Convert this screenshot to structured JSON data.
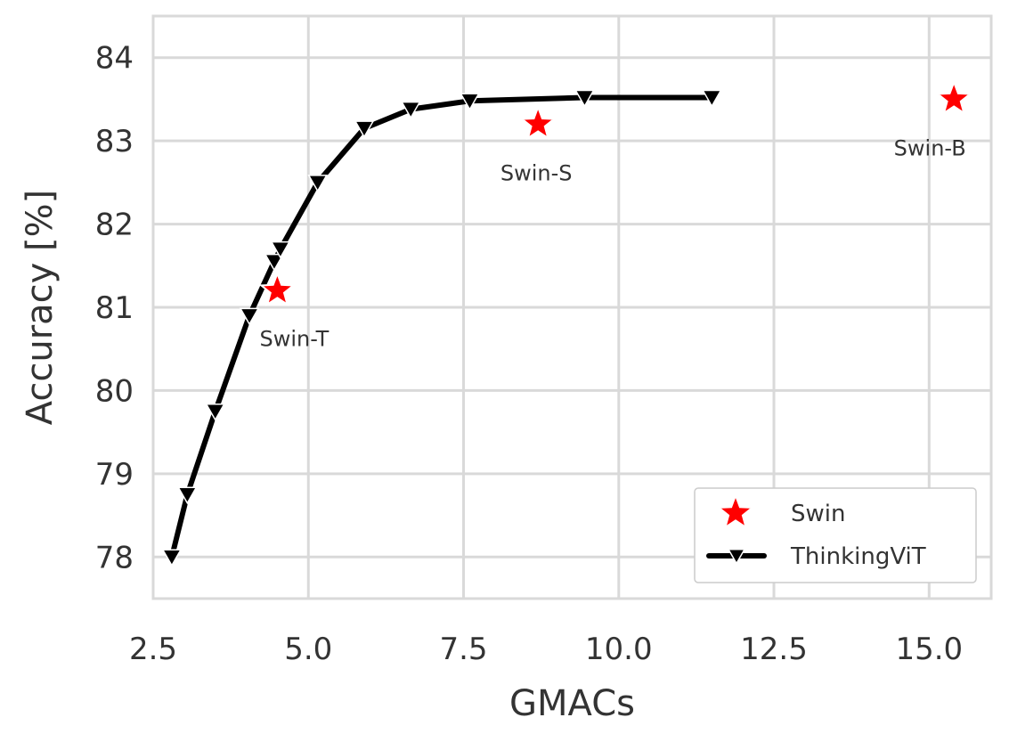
{
  "chart_data": {
    "type": "line",
    "title": "",
    "xlabel": "GMACs",
    "ylabel": "Accuracy [%]",
    "xlim": [
      2.5,
      16.0
    ],
    "ylim": [
      77.5,
      84.5
    ],
    "xticks": [
      2.5,
      5.0,
      7.5,
      10.0,
      12.5,
      15.0
    ],
    "xtick_labels": [
      "2.5",
      "5.0",
      "7.5",
      "10.0",
      "12.5",
      "15.0"
    ],
    "yticks": [
      78,
      79,
      80,
      81,
      82,
      83,
      84
    ],
    "ytick_labels": [
      "78",
      "79",
      "80",
      "81",
      "82",
      "83",
      "84"
    ],
    "grid": true,
    "legend_position": "bottom-right",
    "series": [
      {
        "name": "Swin",
        "kind": "scatter",
        "marker": "star",
        "color": "#ff0000",
        "points": [
          {
            "x": 4.5,
            "y": 81.2,
            "label": "Swin-T"
          },
          {
            "x": 8.7,
            "y": 83.2,
            "label": "Swin-S"
          },
          {
            "x": 15.4,
            "y": 83.5,
            "label": "Swin-B"
          }
        ]
      },
      {
        "name": "ThinkingViT",
        "kind": "line",
        "marker": "triangle-down",
        "color": "#000000",
        "x": [
          2.8,
          3.05,
          3.5,
          4.05,
          4.45,
          4.55,
          5.15,
          5.9,
          6.65,
          7.6,
          9.45,
          11.5
        ],
        "y": [
          78.0,
          78.75,
          79.75,
          80.9,
          81.55,
          81.7,
          82.5,
          83.15,
          83.38,
          83.48,
          83.52,
          83.52
        ]
      }
    ]
  }
}
